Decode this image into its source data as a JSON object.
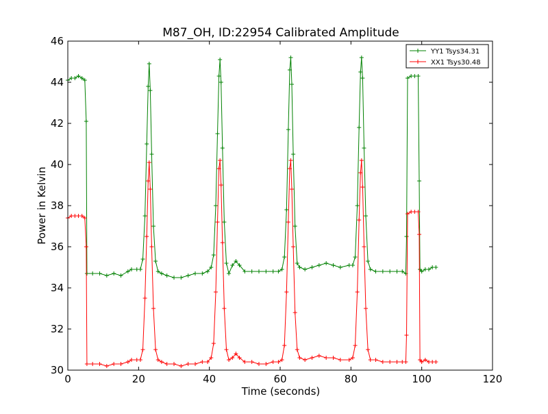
{
  "chart_data": {
    "type": "line",
    "title": "M87_OH, ID:22954 Calibrated Amplitude",
    "xlabel": "Time (seconds)",
    "ylabel": "Power in Kelvin",
    "xlim": [
      0,
      120
    ],
    "ylim": [
      30,
      46
    ],
    "xticks": [
      0,
      20,
      40,
      60,
      80,
      100,
      120
    ],
    "yticks": [
      30,
      32,
      34,
      36,
      38,
      40,
      42,
      44,
      46
    ],
    "grid": false,
    "legend_position": "top-right",
    "series": [
      {
        "name": "YY1 Tsys34.31",
        "color": "#008000",
        "marker": "+",
        "x": [
          0.0,
          1.0,
          2.0,
          3.0,
          4.0,
          4.8,
          5.2,
          5.4,
          7,
          9,
          11,
          13,
          15,
          17,
          18,
          19.5,
          20.5,
          21.2,
          21.8,
          22.3,
          22.7,
          23.0,
          23.3,
          23.7,
          24.2,
          24.8,
          25.5,
          26.5,
          28,
          30,
          32,
          34,
          36,
          38,
          39.5,
          40.5,
          41.2,
          41.8,
          42.3,
          42.7,
          43.0,
          43.3,
          43.7,
          44.2,
          44.8,
          45.5,
          46.5,
          47.5,
          48.5,
          50,
          52,
          54,
          56,
          58,
          59.5,
          60.5,
          61.2,
          61.8,
          62.3,
          62.7,
          63.0,
          63.3,
          63.7,
          64.2,
          64.8,
          65.5,
          67,
          69,
          71,
          73,
          75,
          77,
          79.5,
          80.5,
          81.2,
          81.8,
          82.3,
          82.7,
          83.0,
          83.3,
          83.7,
          84.2,
          84.8,
          85.5,
          87,
          89,
          91,
          93,
          94.5,
          95.5,
          95.7,
          96,
          97,
          98,
          99,
          99.3,
          99.5,
          100,
          101,
          102,
          103,
          104
        ],
        "values": [
          44.1,
          44.2,
          44.2,
          44.3,
          44.2,
          44.1,
          42.1,
          34.7,
          34.7,
          34.7,
          34.6,
          34.7,
          34.6,
          34.8,
          34.9,
          34.9,
          34.9,
          35.4,
          37.5,
          41.0,
          43.8,
          44.9,
          43.6,
          40.5,
          37.0,
          35.3,
          34.8,
          34.7,
          34.6,
          34.5,
          34.5,
          34.6,
          34.7,
          34.7,
          34.8,
          35.0,
          35.6,
          38.0,
          41.5,
          44.3,
          45.1,
          44.0,
          40.8,
          37.2,
          35.2,
          34.7,
          35.1,
          35.3,
          35.1,
          34.8,
          34.8,
          34.8,
          34.8,
          34.8,
          34.8,
          34.9,
          35.5,
          37.8,
          41.7,
          44.6,
          45.2,
          43.9,
          40.5,
          37.0,
          35.2,
          35.0,
          34.9,
          35.0,
          35.1,
          35.2,
          35.1,
          35.0,
          35.1,
          35.1,
          35.5,
          38.0,
          41.8,
          44.5,
          45.2,
          44.2,
          40.8,
          37.5,
          35.3,
          34.9,
          34.8,
          34.8,
          34.8,
          34.8,
          34.8,
          34.7,
          36.5,
          44.2,
          44.3,
          44.3,
          44.3,
          39.2,
          34.9,
          34.8,
          34.9,
          34.9,
          35.0,
          35.0
        ]
      },
      {
        "name": "XX1 Tsys30.48",
        "color": "#ff0000",
        "marker": "+",
        "x": [
          0.0,
          1.0,
          2.0,
          3.0,
          4.0,
          4.8,
          5.2,
          5.4,
          7,
          9,
          11,
          13,
          15,
          17,
          18,
          19.5,
          20.5,
          21.2,
          21.8,
          22.3,
          22.7,
          23.0,
          23.3,
          23.7,
          24.2,
          24.8,
          25.5,
          26.5,
          28,
          30,
          32,
          34,
          36,
          38,
          39.5,
          40.5,
          41.2,
          41.8,
          42.3,
          42.7,
          43.0,
          43.3,
          43.7,
          44.2,
          44.8,
          45.5,
          46.5,
          47.5,
          48.5,
          50,
          52,
          54,
          56,
          58,
          59.5,
          60.5,
          61.2,
          61.8,
          62.3,
          62.7,
          63.0,
          63.3,
          63.7,
          64.2,
          64.8,
          65.5,
          67,
          69,
          71,
          73,
          75,
          77,
          79.5,
          80.5,
          81.2,
          81.8,
          82.3,
          82.7,
          83.0,
          83.3,
          83.7,
          84.2,
          84.8,
          85.5,
          87,
          89,
          91,
          93,
          94.5,
          95.5,
          95.7,
          96,
          97,
          98,
          99,
          99.3,
          99.5,
          100,
          101,
          102,
          103,
          104
        ],
        "values": [
          37.4,
          37.5,
          37.5,
          37.5,
          37.5,
          37.4,
          36.0,
          30.3,
          30.3,
          30.3,
          30.2,
          30.3,
          30.3,
          30.4,
          30.5,
          30.5,
          30.5,
          31.0,
          33.5,
          36.5,
          39.2,
          40.1,
          38.8,
          36.0,
          33.0,
          31.0,
          30.5,
          30.4,
          30.3,
          30.3,
          30.2,
          30.3,
          30.3,
          30.4,
          30.4,
          30.6,
          31.3,
          33.8,
          37.2,
          39.8,
          40.2,
          39.0,
          36.2,
          33.0,
          31.0,
          30.5,
          30.6,
          30.8,
          30.6,
          30.4,
          30.4,
          30.3,
          30.3,
          30.4,
          30.4,
          30.5,
          31.2,
          33.8,
          37.2,
          39.8,
          40.2,
          38.8,
          36.0,
          32.8,
          31.0,
          30.6,
          30.5,
          30.6,
          30.7,
          30.6,
          30.6,
          30.5,
          30.5,
          30.6,
          31.2,
          33.8,
          37.3,
          39.6,
          40.2,
          38.9,
          36.0,
          33.0,
          31.0,
          30.5,
          30.5,
          30.4,
          30.4,
          30.4,
          30.4,
          30.4,
          31.7,
          37.6,
          37.7,
          37.7,
          37.7,
          36.6,
          30.5,
          30.4,
          30.5,
          30.4,
          30.4,
          30.4
        ]
      }
    ]
  }
}
